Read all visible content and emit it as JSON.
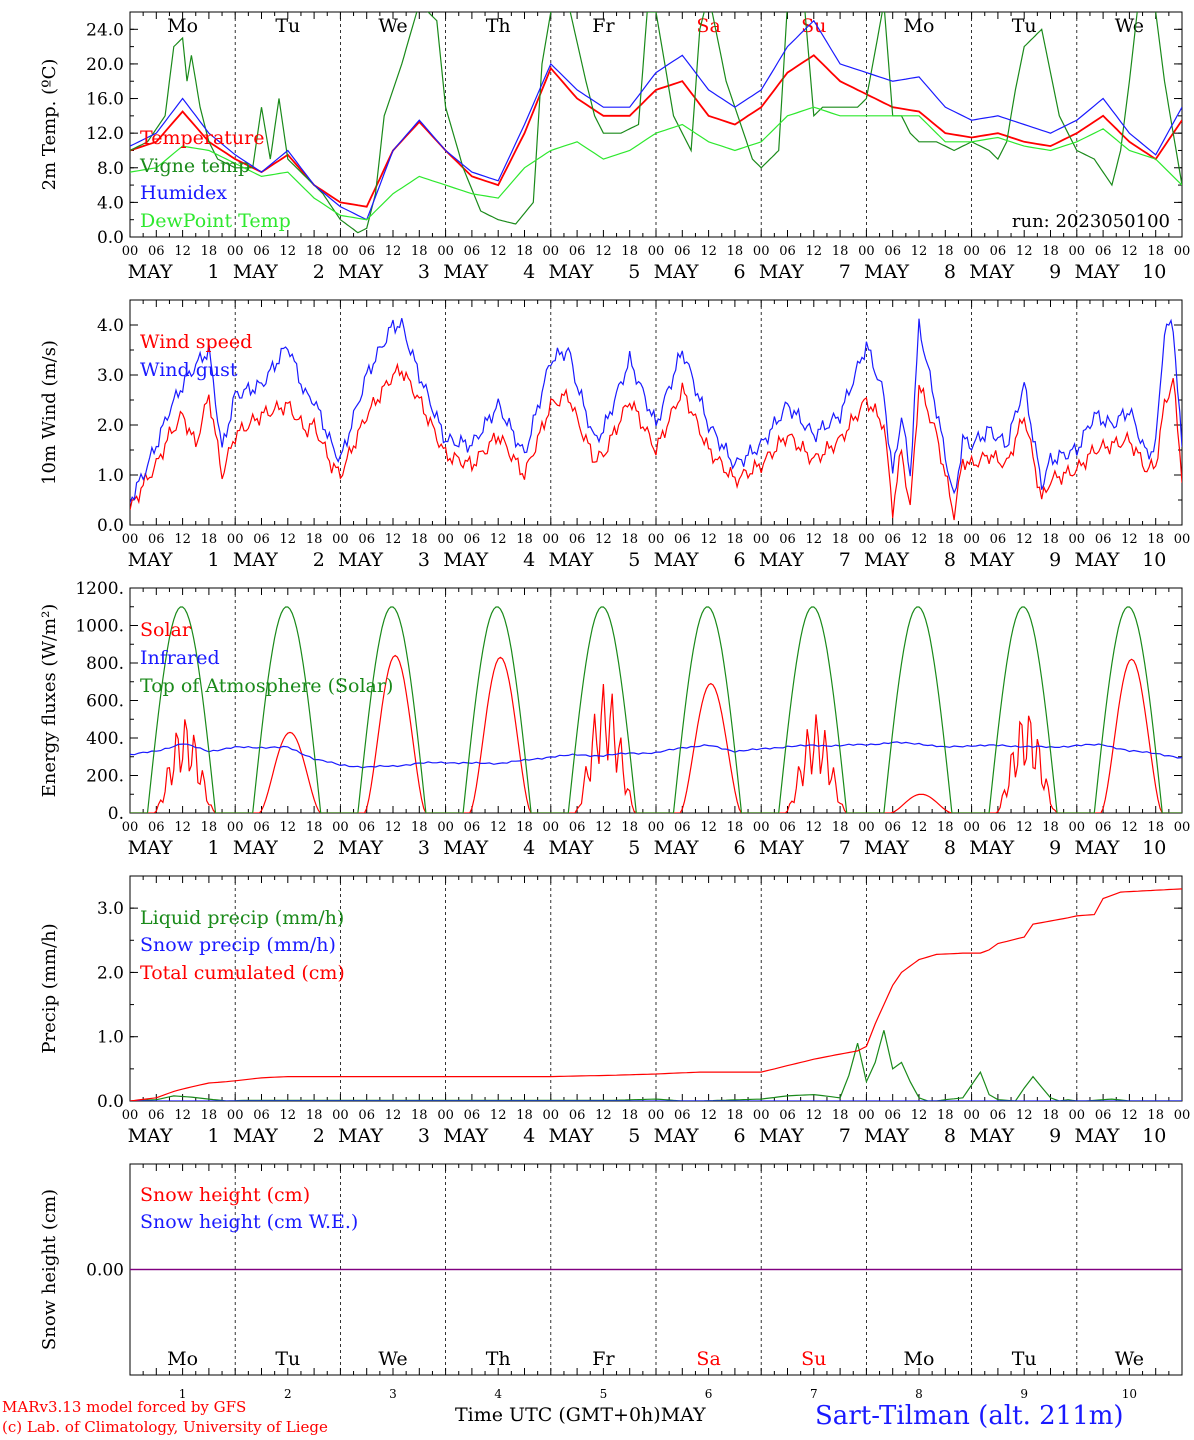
{
  "colors": {
    "red": "#ff0000",
    "blue": "#1a1aff",
    "green": "#1a8a1a",
    "lightgreen": "#2ee82e",
    "purple": "#800080",
    "sat": "#ff0000",
    "sun": "#ff0000",
    "black": "#000000"
  },
  "days": [
    "Mo",
    "Tu",
    "We",
    "Th",
    "Fr",
    "Sa",
    "Su",
    "Mo",
    "Tu",
    "We"
  ],
  "weekend_days": [
    "Sa",
    "Su"
  ],
  "hour_ticks": [
    "00",
    "06",
    "12",
    "18"
  ],
  "month_label": "MAY",
  "date_labels": [
    "1",
    "2",
    "3",
    "4",
    "5",
    "6",
    "7",
    "8",
    "9",
    "10"
  ],
  "final_tick": "00",
  "footer": {
    "credit1": "MARv3.13 model forced by GFS",
    "credit2": "(c) Lab. of Climatology, University of Liege",
    "xlabel": "Time UTC (GMT+0h)",
    "month": "MAY",
    "station": "Sart-Tilman (alt. 211m)"
  },
  "chart_data": [
    {
      "id": "temperature",
      "type": "line",
      "ylabel": "2m Temp. (ºC)",
      "ylim": [
        0,
        26
      ],
      "yticks": [
        "0.0",
        "4.0",
        "8.0",
        "12.0",
        "16.0",
        "20.0",
        "24.0"
      ],
      "annotation": "run: 2023050100",
      "x_unit": "hours since May 1 00 UTC",
      "series": [
        {
          "name": "Temperature",
          "color": "#ff0000",
          "x": [
            0,
            6,
            12,
            18,
            24,
            30,
            36,
            42,
            48,
            54,
            60,
            66,
            72,
            78,
            84,
            90,
            96,
            102,
            108,
            114,
            120,
            126,
            132,
            138,
            144,
            150,
            156,
            162,
            168,
            174,
            180,
            186,
            192,
            198,
            204,
            210,
            216,
            222,
            228,
            234,
            240
          ],
          "values": [
            10,
            11,
            14.5,
            11,
            9,
            7.5,
            9.5,
            6,
            4,
            3.5,
            10,
            13.3,
            10,
            7,
            6,
            12,
            19.5,
            16,
            14,
            14,
            17,
            18,
            14,
            13,
            15,
            19,
            21,
            18,
            16.5,
            15,
            14.5,
            12,
            11.5,
            12,
            11,
            10.5,
            12,
            14,
            11,
            9,
            13.5
          ]
        },
        {
          "name": "Vigne temp",
          "color": "#1a8a1a",
          "x": [
            0,
            4,
            8,
            10,
            12,
            13,
            14,
            16,
            18,
            20,
            24,
            28,
            30,
            32,
            34,
            36,
            40,
            44,
            48,
            52,
            54,
            56,
            58,
            62,
            66,
            70,
            72,
            76,
            80,
            84,
            88,
            92,
            94,
            96,
            100,
            104,
            106,
            108,
            112,
            116,
            118,
            120,
            124,
            128,
            130,
            132,
            136,
            140,
            142,
            144,
            148,
            150,
            152,
            154,
            156,
            158,
            160,
            166,
            168,
            172,
            174,
            176,
            178,
            180,
            184,
            188,
            192,
            196,
            198,
            200,
            202,
            204,
            208,
            212,
            214,
            216,
            220,
            224,
            226,
            228,
            230,
            232,
            234,
            236,
            240
          ],
          "values": [
            10,
            11,
            14,
            22,
            23,
            18,
            21,
            15,
            11,
            9,
            8,
            8,
            15,
            9,
            16,
            9,
            7,
            5,
            2,
            0.5,
            1,
            5,
            14,
            20,
            27,
            25,
            15,
            8,
            3,
            2,
            1.5,
            4,
            20,
            26,
            27,
            18,
            14,
            12,
            12,
            13,
            26,
            26,
            14,
            10,
            24,
            28,
            18,
            12,
            9,
            8,
            10,
            27,
            28,
            26,
            14,
            15,
            15,
            15,
            16,
            27,
            14,
            14,
            12,
            11,
            11,
            10,
            11,
            10,
            9,
            11,
            17,
            22,
            24,
            14,
            12,
            10,
            9,
            6,
            10,
            18,
            27,
            28,
            26,
            18,
            6
          ]
        },
        {
          "name": "Humidex",
          "color": "#1a1aff",
          "x": [
            0,
            6,
            12,
            18,
            24,
            30,
            36,
            42,
            48,
            54,
            60,
            66,
            72,
            78,
            84,
            90,
            96,
            102,
            108,
            114,
            120,
            126,
            132,
            138,
            144,
            150,
            156,
            162,
            168,
            174,
            180,
            186,
            192,
            198,
            204,
            210,
            216,
            222,
            228,
            234,
            240
          ],
          "values": [
            10.5,
            12,
            16,
            12,
            9.5,
            7.5,
            10,
            6,
            3.5,
            2,
            10,
            13.5,
            10,
            7.5,
            6.5,
            13,
            20,
            17,
            15,
            15,
            19,
            21,
            17,
            15,
            17,
            22,
            25,
            20,
            19,
            18,
            18.5,
            15,
            13.5,
            14,
            13,
            12,
            13.5,
            16,
            12,
            9.5,
            15
          ]
        },
        {
          "name": "DewPoint Temp",
          "color": "#2ee82e",
          "x": [
            0,
            6,
            12,
            18,
            24,
            30,
            36,
            42,
            48,
            54,
            60,
            66,
            72,
            78,
            84,
            90,
            96,
            102,
            108,
            114,
            120,
            126,
            132,
            138,
            144,
            150,
            156,
            162,
            168,
            174,
            180,
            186,
            192,
            198,
            204,
            210,
            216,
            222,
            228,
            234,
            240
          ],
          "values": [
            7.5,
            8,
            10.5,
            10,
            8.5,
            7,
            7.5,
            4.5,
            2.5,
            2,
            5,
            7,
            6,
            5,
            4.5,
            8,
            10,
            11,
            9,
            10,
            12,
            13,
            11,
            10,
            11,
            14,
            15,
            14,
            14,
            14,
            14,
            11,
            11,
            11.5,
            10.5,
            10,
            11,
            12.5,
            10,
            9,
            6
          ]
        }
      ]
    },
    {
      "id": "wind",
      "type": "line",
      "ylabel": "10m Wind (m/s)",
      "ylim": [
        0,
        4.5
      ],
      "yticks": [
        "0.0",
        "1.0",
        "2.0",
        "3.0",
        "4.0"
      ],
      "x_unit": "hours since May 1 00 UTC",
      "series": [
        {
          "name": "Wind speed",
          "color": "#ff0000",
          "x": [
            0,
            3,
            6,
            9,
            12,
            15,
            18,
            21,
            24,
            30,
            36,
            40,
            42,
            46,
            48,
            54,
            60,
            62,
            66,
            72,
            78,
            84,
            90,
            96,
            100,
            102,
            106,
            108,
            114,
            120,
            126,
            132,
            138,
            144,
            150,
            156,
            162,
            168,
            172,
            174,
            176,
            178,
            180,
            184,
            186,
            188,
            190,
            192,
            196,
            200,
            204,
            208,
            210,
            216,
            220,
            224,
            228,
            232,
            234,
            236,
            238,
            240
          ],
          "values": [
            0.3,
            0.8,
            1.2,
            1.8,
            2.2,
            1.6,
            2.6,
            1.0,
            1.8,
            2.2,
            2.4,
            1.9,
            2.0,
            1.2,
            1.0,
            2.2,
            3.0,
            3.1,
            2.5,
            1.4,
            1.2,
            1.8,
            1.0,
            2.4,
            2.6,
            2.1,
            1.3,
            1.4,
            2.5,
            1.5,
            2.7,
            1.5,
            0.9,
            1.2,
            1.8,
            1.3,
            1.7,
            2.5,
            2.0,
            0.3,
            1.5,
            0.3,
            2.8,
            1.8,
            1.0,
            0.2,
            1.3,
            1.2,
            1.4,
            1.2,
            2.2,
            0.5,
            0.9,
            1.1,
            1.5,
            1.6,
            1.7,
            1.1,
            1.2,
            2.4,
            2.9,
            1.0
          ]
        },
        {
          "name": "Wind gust",
          "color": "#1a1aff",
          "x": [
            0,
            3,
            6,
            9,
            12,
            15,
            18,
            21,
            24,
            30,
            36,
            40,
            42,
            46,
            48,
            54,
            60,
            62,
            66,
            72,
            78,
            84,
            90,
            96,
            100,
            102,
            106,
            108,
            114,
            120,
            126,
            132,
            138,
            144,
            150,
            156,
            162,
            168,
            172,
            174,
            176,
            178,
            180,
            184,
            186,
            188,
            190,
            192,
            196,
            200,
            204,
            208,
            210,
            216,
            220,
            224,
            228,
            232,
            234,
            236,
            238,
            240
          ],
          "values": [
            0.5,
            1.0,
            1.6,
            2.3,
            2.8,
            3.2,
            3.5,
            1.5,
            2.6,
            2.8,
            3.6,
            2.6,
            2.5,
            1.6,
            1.3,
            3.0,
            4.0,
            4.0,
            3.0,
            1.7,
            1.6,
            2.4,
            1.4,
            3.3,
            3.5,
            2.8,
            1.7,
            1.9,
            3.3,
            2.0,
            3.5,
            2.0,
            1.2,
            1.6,
            2.4,
            1.8,
            2.2,
            3.6,
            2.6,
            1.0,
            2.2,
            1.0,
            4.0,
            2.3,
            1.4,
            0.5,
            1.7,
            1.6,
            1.9,
            1.6,
            2.8,
            0.8,
            1.3,
            1.5,
            2.2,
            2.0,
            2.3,
            1.4,
            1.6,
            3.9,
            4.0,
            1.5
          ]
        }
      ]
    },
    {
      "id": "energy",
      "type": "line",
      "ylabel": "Energy fluxes (W/m²)",
      "ylim": [
        0,
        1200
      ],
      "yticks": [
        "0.",
        "200.",
        "400.",
        "600.",
        "800.",
        "1000.",
        "1200."
      ],
      "x_unit": "hours since May 1 00 UTC",
      "series": [
        {
          "name": "Solar",
          "color": "#ff0000",
          "peaks": [
            520,
            430,
            840,
            830,
            700,
            690,
            530,
            100,
            560,
            820
          ]
        },
        {
          "name": "Infrared",
          "color": "#1a1aff",
          "x": [
            0,
            6,
            12,
            18,
            24,
            30,
            36,
            42,
            48,
            54,
            60,
            66,
            72,
            78,
            84,
            90,
            96,
            102,
            108,
            114,
            120,
            126,
            132,
            138,
            144,
            150,
            156,
            162,
            168,
            174,
            180,
            186,
            192,
            198,
            204,
            210,
            216,
            222,
            228,
            234,
            240
          ],
          "values": [
            310,
            330,
            370,
            330,
            350,
            350,
            350,
            290,
            255,
            245,
            250,
            265,
            270,
            265,
            265,
            280,
            300,
            310,
            305,
            320,
            320,
            350,
            360,
            330,
            340,
            355,
            360,
            360,
            365,
            375,
            370,
            350,
            360,
            360,
            355,
            350,
            360,
            365,
            330,
            320,
            290
          ]
        },
        {
          "name": "Top of Atmosphere (Solar)",
          "color": "#1a8a1a",
          "peak": 1100,
          "sunrise_h": 4,
          "sunset_h": 19.5
        }
      ]
    },
    {
      "id": "precip",
      "type": "line",
      "ylabel": "Precip (mm/h)",
      "ylim": [
        0,
        3.5
      ],
      "yticks": [
        "0.0",
        "1.0",
        "2.0",
        "3.0"
      ],
      "x_unit": "hours since May 1 00 UTC",
      "series": [
        {
          "name": "Liquid precip (mm/h)",
          "color": "#1a8a1a",
          "x": [
            0,
            6,
            10,
            14,
            18,
            22,
            26,
            110,
            120,
            126,
            130,
            144,
            150,
            156,
            162,
            164,
            166,
            168,
            170,
            172,
            174,
            176,
            178,
            180,
            182,
            184,
            186,
            190,
            194,
            196,
            198,
            202,
            204,
            206,
            210,
            212,
            214,
            216,
            218,
            224,
            228,
            240
          ],
          "values": [
            0,
            0.02,
            0.08,
            0.06,
            0.03,
            0,
            0.01,
            0.01,
            0.03,
            0,
            0,
            0.03,
            0.08,
            0.1,
            0.05,
            0.4,
            0.9,
            0.3,
            0.6,
            1.1,
            0.5,
            0.6,
            0.3,
            0.05,
            0,
            0,
            0.02,
            0.05,
            0.45,
            0.1,
            0.02,
            0,
            0.2,
            0.38,
            0.05,
            0,
            0.02,
            0,
            0,
            0.03,
            0,
            0
          ]
        },
        {
          "name": "Snow precip (mm/h)",
          "color": "#1a1aff",
          "x": [
            0,
            240
          ],
          "values": [
            0,
            0
          ]
        },
        {
          "name": "Total cumulated (cm)",
          "color": "#ff0000",
          "x": [
            0,
            6,
            10,
            14,
            18,
            22,
            26,
            30,
            36,
            48,
            72,
            96,
            110,
            120,
            130,
            144,
            150,
            156,
            162,
            166,
            168,
            170,
            172,
            174,
            176,
            178,
            180,
            184,
            190,
            194,
            196,
            198,
            204,
            206,
            210,
            214,
            216,
            220,
            222,
            226,
            240
          ],
          "values": [
            0,
            0.05,
            0.15,
            0.22,
            0.28,
            0.3,
            0.33,
            0.36,
            0.38,
            0.38,
            0.38,
            0.38,
            0.4,
            0.42,
            0.45,
            0.45,
            0.55,
            0.65,
            0.73,
            0.78,
            0.85,
            1.2,
            1.5,
            1.8,
            2.0,
            2.1,
            2.2,
            2.28,
            2.3,
            2.3,
            2.35,
            2.45,
            2.55,
            2.75,
            2.8,
            2.85,
            2.88,
            2.9,
            3.15,
            3.25,
            3.3
          ]
        }
      ]
    },
    {
      "id": "snow",
      "type": "line",
      "ylabel": "Snow height (cm)",
      "ylim": [
        -1,
        1
      ],
      "yticks": [
        "0.00"
      ],
      "x_unit": "hours since May 1 00 UTC",
      "series": [
        {
          "name": "Snow height (cm)",
          "color": "#ff0000",
          "x": [
            0,
            240
          ],
          "values": [
            0,
            0
          ]
        },
        {
          "name": "Snow height (cm W.E.)",
          "color": "#1a1aff",
          "x": [
            0,
            240
          ],
          "values": [
            0,
            0
          ]
        }
      ]
    }
  ]
}
